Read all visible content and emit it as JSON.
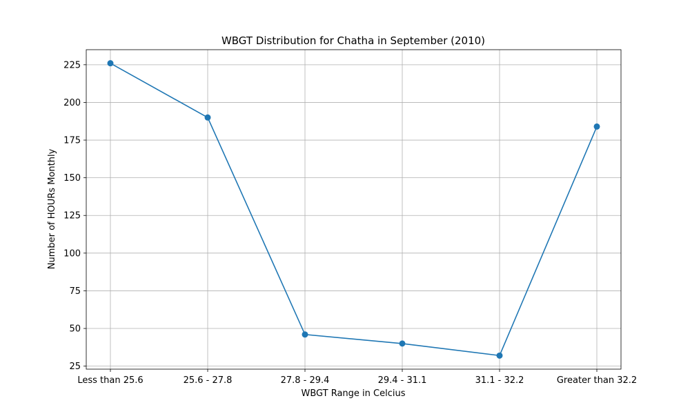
{
  "chart_data": {
    "type": "line",
    "title": "WBGT Distribution for Chatha in September (2010)",
    "xlabel": "WBGT Range in Celcius",
    "ylabel": "Number of HOURs Monthly",
    "categories": [
      "Less than 25.6",
      "25.6 - 27.8",
      "27.8 - 29.4",
      "29.4 - 31.1",
      "31.1 - 32.2",
      "Greater than 32.2"
    ],
    "values": [
      226,
      190,
      46,
      40,
      32,
      184
    ],
    "yticks": [
      "25",
      "50",
      "75",
      "100",
      "125",
      "150",
      "175",
      "200",
      "225"
    ],
    "ylim": [
      23,
      235
    ],
    "grid": true,
    "line_color": "#1f77b4",
    "marker": "circle"
  }
}
